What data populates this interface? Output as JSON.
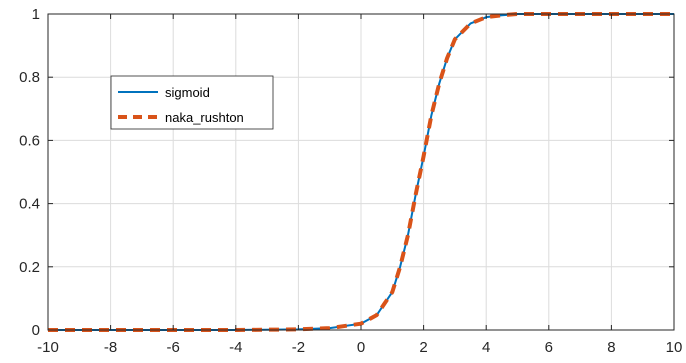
{
  "chart_data": {
    "type": "line",
    "title": "",
    "xlabel": "",
    "ylabel": "",
    "xlim": [
      -10,
      10
    ],
    "ylim": [
      0,
      1
    ],
    "x_ticks": [
      -10,
      -8,
      -6,
      -4,
      -2,
      0,
      2,
      4,
      6,
      8,
      10
    ],
    "y_ticks": [
      0,
      0.2,
      0.4,
      0.6,
      0.8,
      1
    ],
    "x_tick_labels": [
      "-10",
      "-8",
      "-6",
      "-4",
      "-2",
      "0",
      "2",
      "4",
      "6",
      "8",
      "10"
    ],
    "y_tick_labels": [
      "0",
      "0.2",
      "0.4",
      "0.6",
      "0.8",
      "1"
    ],
    "grid": true,
    "legend_position": "top-left",
    "x": [
      -10,
      -8,
      -6,
      -4,
      -2,
      -1,
      0,
      0.5,
      1,
      1.25,
      1.5,
      1.75,
      2,
      2.25,
      2.5,
      2.75,
      3,
      3.5,
      4,
      4.5,
      5,
      6,
      8,
      10
    ],
    "series": [
      {
        "name": "sigmoid",
        "color": "#0072BD",
        "style": "solid",
        "values": [
          0,
          0,
          0,
          0,
          0.002,
          0.006,
          0.02,
          0.047,
          0.12,
          0.2,
          0.3,
          0.43,
          0.55,
          0.68,
          0.78,
          0.86,
          0.92,
          0.97,
          0.99,
          0.996,
          1,
          1,
          1,
          1
        ]
      },
      {
        "name": "naka_rushton",
        "color": "#D95319",
        "style": "dashed",
        "values": [
          0,
          0,
          0,
          0,
          0.002,
          0.006,
          0.02,
          0.047,
          0.12,
          0.2,
          0.3,
          0.43,
          0.55,
          0.68,
          0.78,
          0.86,
          0.92,
          0.97,
          0.99,
          0.996,
          1,
          1,
          1,
          1
        ]
      }
    ]
  }
}
